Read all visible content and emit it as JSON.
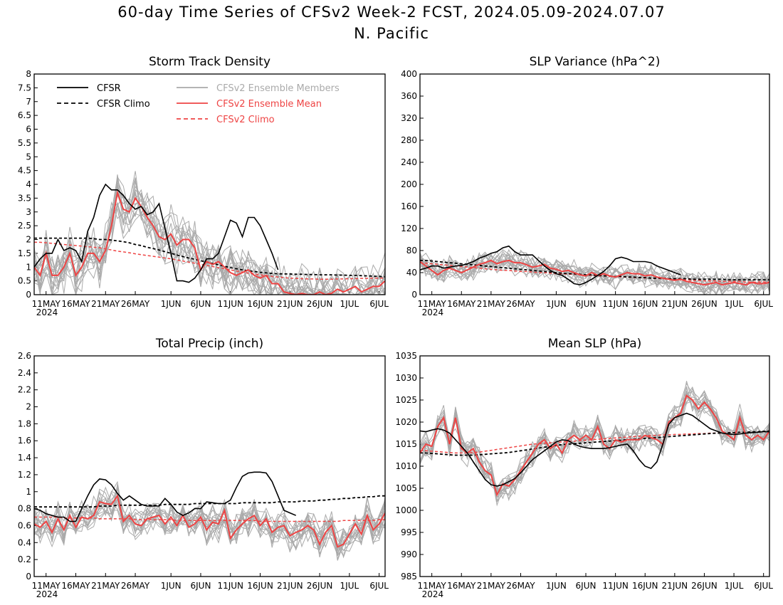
{
  "header": {
    "title": "60-day Time Series of CFSv2 Week-2 FCST, 2024.05.09-2024.07.07",
    "subtitle": "N. Pacific"
  },
  "colors": {
    "cfsr": "#000000",
    "cfsr_climo": "#000000",
    "members": "#aaaaaa",
    "ens_mean": "#ee4444",
    "cfsv2_climo": "#ee4444"
  },
  "legend": {
    "cfsr": "CFSR",
    "cfsr_climo": "CFSR Climo",
    "members": "CFSv2 Ensemble Members",
    "ens_mean": "CFSv2 Ensemble Mean",
    "cfsv2_climo": "CFSv2 Climo"
  },
  "chart_data": [
    {
      "type": "line",
      "title": "Storm Track Density",
      "xlim": [
        0,
        59
      ],
      "ylim": [
        0,
        8
      ],
      "yticks": [
        "0",
        "0.5",
        "1",
        "1.5",
        "2",
        "2.5",
        "3",
        "3.5",
        "4",
        "4.5",
        "5",
        "5.5",
        "6",
        "6.5",
        "7",
        "7.5",
        "8"
      ],
      "x_ticks": [
        {
          "day": 2,
          "label": "11MAY",
          "sub": "2024"
        },
        {
          "day": 7,
          "label": "16MAY"
        },
        {
          "day": 12,
          "label": "21MAY"
        },
        {
          "day": 17,
          "label": "26MAY"
        },
        {
          "day": 23,
          "label": "1JUN"
        },
        {
          "day": 28,
          "label": "6JUN"
        },
        {
          "day": 33,
          "label": "11JUN"
        },
        {
          "day": 38,
          "label": "16JUN"
        },
        {
          "day": 43,
          "label": "21JUN"
        },
        {
          "day": 48,
          "label": "26JUN"
        },
        {
          "day": 53,
          "label": "1JUL"
        },
        {
          "day": 58,
          "label": "6JUL"
        }
      ],
      "cfsr": [
        1.0,
        1.3,
        1.5,
        1.5,
        2.0,
        1.6,
        1.7,
        1.6,
        1.2,
        2.3,
        2.8,
        3.6,
        4.0,
        3.8,
        3.8,
        3.6,
        3.3,
        3.1,
        3.2,
        2.9,
        3.0,
        3.3,
        2.4,
        1.5,
        0.5,
        0.5,
        0.45,
        0.6,
        0.9,
        1.3,
        1.3,
        1.5,
        2.1,
        2.7,
        2.6,
        2.1,
        2.8,
        2.8,
        2.5,
        2.0,
        1.5,
        0.9
      ],
      "cfsr_climo": [
        2.05,
        2.05,
        2.05,
        2.05,
        2.05,
        2.05,
        2.05,
        2.05,
        2.05,
        2.05,
        2.03,
        2.0,
        2.0,
        1.98,
        1.95,
        1.92,
        1.88,
        1.82,
        1.78,
        1.72,
        1.67,
        1.62,
        1.56,
        1.5,
        1.44,
        1.38,
        1.33,
        1.28,
        1.23,
        1.18,
        1.13,
        1.08,
        1.03,
        0.98,
        0.94,
        0.9,
        0.87,
        0.84,
        0.81,
        0.79,
        0.77,
        0.76,
        0.75,
        0.75,
        0.74,
        0.74,
        0.73,
        0.73,
        0.72,
        0.72,
        0.72,
        0.71,
        0.71,
        0.7,
        0.7,
        0.69,
        0.68,
        0.67,
        0.66,
        0.65
      ],
      "ens_mean": [
        1.0,
        0.7,
        1.5,
        0.7,
        0.7,
        1.0,
        1.5,
        0.7,
        1.0,
        1.5,
        1.5,
        1.2,
        1.6,
        2.5,
        3.7,
        3.1,
        3.0,
        3.5,
        3.2,
        2.8,
        2.5,
        2.1,
        2.0,
        2.2,
        1.8,
        2.0,
        2.0,
        1.7,
        0.9,
        1.2,
        1.1,
        1.2,
        1.0,
        0.8,
        0.7,
        0.8,
        0.9,
        0.7,
        0.6,
        0.7,
        0.4,
        0.4,
        0.1,
        0.05,
        0.0,
        0.05,
        0.0,
        0.0,
        0.1,
        0.0,
        0.05,
        0.2,
        0.1,
        0.2,
        0.3,
        0.1,
        0.2,
        0.3,
        0.3,
        0.5
      ],
      "cfsv2_climo": [
        1.9,
        1.9,
        1.88,
        1.86,
        1.84,
        1.82,
        1.8,
        1.78,
        1.76,
        1.74,
        1.72,
        1.7,
        1.66,
        1.62,
        1.58,
        1.55,
        1.52,
        1.48,
        1.45,
        1.42,
        1.39,
        1.36,
        1.33,
        1.3,
        1.26,
        1.22,
        1.18,
        1.14,
        1.1,
        1.06,
        1.02,
        0.98,
        0.94,
        0.9,
        0.86,
        0.82,
        0.78,
        0.75,
        0.72,
        0.69,
        0.66,
        0.64,
        0.62,
        0.6,
        0.59,
        0.58,
        0.57,
        0.57,
        0.56,
        0.56,
        0.56,
        0.57,
        0.57,
        0.58,
        0.58,
        0.59,
        0.59,
        0.6,
        0.6,
        0.6
      ],
      "member_spread": 0.8,
      "member_count": 16
    },
    {
      "type": "line",
      "title": "SLP Variance (hPa^2)",
      "xlim": [
        0,
        59
      ],
      "ylim": [
        0,
        400
      ],
      "yticks": [
        "0",
        "40",
        "80",
        "120",
        "160",
        "200",
        "240",
        "280",
        "320",
        "360",
        "400"
      ],
      "x_ticks": [
        {
          "day": 2,
          "label": "11MAY",
          "sub": "2024"
        },
        {
          "day": 7,
          "label": "16MAY"
        },
        {
          "day": 12,
          "label": "21MAY"
        },
        {
          "day": 17,
          "label": "26MAY"
        },
        {
          "day": 23,
          "label": "1JUN"
        },
        {
          "day": 28,
          "label": "6JUN"
        },
        {
          "day": 33,
          "label": "11JUN"
        },
        {
          "day": 38,
          "label": "16JUN"
        },
        {
          "day": 43,
          "label": "21JUN"
        },
        {
          "day": 48,
          "label": "26JUN"
        },
        {
          "day": 53,
          "label": "1JUL"
        },
        {
          "day": 58,
          "label": "6JUL"
        }
      ],
      "cfsr": [
        45,
        48,
        52,
        52,
        48,
        50,
        52,
        53,
        56,
        60,
        66,
        70,
        75,
        78,
        85,
        88,
        78,
        72,
        72,
        72,
        62,
        52,
        44,
        38,
        35,
        28,
        20,
        18,
        22,
        28,
        35,
        42,
        52,
        65,
        68,
        65,
        60,
        60,
        60,
        58,
        52,
        48,
        44,
        40,
        36
      ],
      "cfsr_climo": [
        62,
        62,
        61,
        60,
        59,
        58,
        57,
        56,
        55,
        54,
        53,
        52,
        51,
        50,
        49,
        48,
        47,
        46,
        45,
        44,
        43,
        42,
        41,
        40,
        39,
        38,
        38,
        37,
        36,
        36,
        35,
        34,
        34,
        33,
        33,
        32,
        32,
        31,
        31,
        30,
        30,
        30,
        29,
        29,
        29,
        29,
        28,
        28,
        28,
        28,
        28,
        28,
        27,
        27,
        27,
        27,
        27,
        27,
        27,
        27
      ],
      "ens_mean": [
        60,
        52,
        44,
        36,
        44,
        48,
        44,
        40,
        45,
        50,
        55,
        58,
        62,
        56,
        60,
        62,
        58,
        58,
        54,
        50,
        52,
        55,
        48,
        46,
        42,
        44,
        40,
        36,
        34,
        40,
        35,
        38,
        34,
        32,
        36,
        40,
        38,
        38,
        34,
        36,
        32,
        30,
        28,
        26,
        28,
        24,
        22,
        20,
        18,
        20,
        22,
        18,
        20,
        22,
        20,
        18,
        22,
        20,
        20,
        22
      ],
      "cfsv2_climo": [
        58,
        57,
        56,
        55,
        54,
        53,
        52,
        51,
        50,
        49,
        48,
        47,
        46,
        45,
        44,
        44,
        43,
        42,
        42,
        41,
        40,
        40,
        39,
        38,
        38,
        37,
        37,
        36,
        35,
        35,
        34,
        34,
        33,
        33,
        32,
        32,
        31,
        31,
        30,
        30,
        29,
        29,
        28,
        28,
        27,
        27,
        26,
        26,
        25,
        25,
        25,
        24,
        24,
        24,
        24,
        23,
        23,
        23,
        23,
        23
      ],
      "member_spread": 18,
      "member_count": 16
    },
    {
      "type": "line",
      "title": "Total Precip (inch)",
      "xlim": [
        0,
        59
      ],
      "ylim": [
        0,
        2.6
      ],
      "yticks": [
        "0",
        "0.2",
        "0.4",
        "0.6",
        "0.8",
        "1",
        "1.2",
        "1.4",
        "1.6",
        "1.8",
        "2",
        "2.2",
        "2.4",
        "2.6"
      ],
      "x_ticks": [
        {
          "day": 2,
          "label": "11MAY",
          "sub": "2024"
        },
        {
          "day": 7,
          "label": "16MAY"
        },
        {
          "day": 12,
          "label": "21MAY"
        },
        {
          "day": 17,
          "label": "26MAY"
        },
        {
          "day": 23,
          "label": "1JUN"
        },
        {
          "day": 28,
          "label": "6JUN"
        },
        {
          "day": 33,
          "label": "11JUN"
        },
        {
          "day": 38,
          "label": "16JUN"
        },
        {
          "day": 43,
          "label": "21JUN"
        },
        {
          "day": 48,
          "label": "26JUN"
        },
        {
          "day": 53,
          "label": "1JUL"
        },
        {
          "day": 58,
          "label": "6JUL"
        }
      ],
      "cfsr": [
        0.8,
        0.78,
        0.74,
        0.72,
        0.7,
        0.7,
        0.65,
        0.65,
        0.8,
        0.95,
        1.08,
        1.15,
        1.14,
        1.08,
        0.98,
        0.9,
        0.95,
        0.9,
        0.85,
        0.83,
        0.83,
        0.83,
        0.92,
        0.85,
        0.76,
        0.72,
        0.75,
        0.8,
        0.8,
        0.88,
        0.87,
        0.86,
        0.86,
        0.9,
        1.05,
        1.18,
        1.22,
        1.23,
        1.23,
        1.22,
        1.12,
        0.95,
        0.78,
        0.75,
        0.72
      ],
      "cfsr_climo": [
        0.82,
        0.82,
        0.82,
        0.82,
        0.82,
        0.82,
        0.82,
        0.82,
        0.82,
        0.82,
        0.82,
        0.83,
        0.83,
        0.83,
        0.84,
        0.84,
        0.84,
        0.84,
        0.84,
        0.84,
        0.84,
        0.84,
        0.85,
        0.85,
        0.85,
        0.85,
        0.85,
        0.86,
        0.86,
        0.86,
        0.86,
        0.86,
        0.86,
        0.86,
        0.86,
        0.87,
        0.87,
        0.87,
        0.87,
        0.87,
        0.87,
        0.88,
        0.88,
        0.88,
        0.88,
        0.89,
        0.89,
        0.89,
        0.9,
        0.9,
        0.91,
        0.91,
        0.92,
        0.92,
        0.93,
        0.93,
        0.94,
        0.94,
        0.95,
        0.95
      ],
      "ens_mean": [
        0.62,
        0.58,
        0.65,
        0.52,
        0.68,
        0.55,
        0.72,
        0.58,
        0.7,
        0.68,
        0.72,
        0.88,
        0.86,
        0.85,
        0.95,
        0.65,
        0.72,
        0.62,
        0.6,
        0.68,
        0.7,
        0.72,
        0.62,
        0.7,
        0.6,
        0.72,
        0.58,
        0.62,
        0.7,
        0.55,
        0.64,
        0.62,
        0.78,
        0.45,
        0.55,
        0.62,
        0.68,
        0.72,
        0.6,
        0.68,
        0.52,
        0.58,
        0.6,
        0.48,
        0.52,
        0.55,
        0.6,
        0.55,
        0.38,
        0.52,
        0.6,
        0.35,
        0.38,
        0.5,
        0.62,
        0.5,
        0.72,
        0.55,
        0.62,
        0.75
      ],
      "cfsv2_climo": [
        0.7,
        0.7,
        0.7,
        0.7,
        0.7,
        0.69,
        0.69,
        0.69,
        0.69,
        0.69,
        0.69,
        0.68,
        0.68,
        0.68,
        0.68,
        0.68,
        0.68,
        0.67,
        0.67,
        0.67,
        0.67,
        0.67,
        0.67,
        0.67,
        0.66,
        0.66,
        0.66,
        0.66,
        0.66,
        0.66,
        0.66,
        0.66,
        0.66,
        0.66,
        0.66,
        0.66,
        0.66,
        0.66,
        0.65,
        0.65,
        0.65,
        0.65,
        0.65,
        0.65,
        0.65,
        0.65,
        0.65,
        0.65,
        0.65,
        0.65,
        0.65,
        0.65,
        0.66,
        0.66,
        0.66,
        0.66,
        0.66,
        0.66,
        0.67,
        0.67
      ],
      "member_spread": 0.17,
      "member_count": 16
    },
    {
      "type": "line",
      "title": "Mean SLP (hPa)",
      "xlim": [
        0,
        59
      ],
      "ylim": [
        985,
        1035
      ],
      "yticks": [
        "985",
        "990",
        "995",
        "1000",
        "1005",
        "1010",
        "1015",
        "1020",
        "1025",
        "1030",
        "1035"
      ],
      "x_ticks": [
        {
          "day": 2,
          "label": "11MAY",
          "sub": "2024"
        },
        {
          "day": 7,
          "label": "16MAY"
        },
        {
          "day": 12,
          "label": "21MAY"
        },
        {
          "day": 17,
          "label": "26MAY"
        },
        {
          "day": 23,
          "label": "1JUN"
        },
        {
          "day": 28,
          "label": "6JUN"
        },
        {
          "day": 33,
          "label": "11JUN"
        },
        {
          "day": 38,
          "label": "16JUN"
        },
        {
          "day": 43,
          "label": "21JUN"
        },
        {
          "day": 48,
          "label": "26JUN"
        },
        {
          "day": 53,
          "label": "1JUL"
        },
        {
          "day": 58,
          "label": "6JUL"
        }
      ],
      "cfsr": [
        1018,
        1017.8,
        1018.2,
        1018.5,
        1018.2,
        1017.5,
        1016,
        1014.5,
        1013,
        1011,
        1009,
        1007,
        1005.8,
        1005.5,
        1005.8,
        1006.5,
        1007.2,
        1008.5,
        1010,
        1011.5,
        1012.5,
        1013.5,
        1014.5,
        1015.5,
        1016,
        1015.8,
        1015,
        1014.5,
        1014.2,
        1014,
        1014,
        1014,
        1014.2,
        1014.5,
        1014.8,
        1015,
        1013.5,
        1011.5,
        1010,
        1009.5,
        1011,
        1015,
        1019.5,
        1021,
        1021.5,
        1022,
        1021.5,
        1020.5,
        1019.5,
        1018.5,
        1018,
        1017.5,
        1017.3,
        1017.2,
        1017.3,
        1017.5,
        1017.6,
        1017.7,
        1017.8,
        1017.8
      ],
      "cfsr_climo": [
        1013,
        1013,
        1012.9,
        1012.8,
        1012.7,
        1012.6,
        1012.5,
        1012.5,
        1012.5,
        1012.5,
        1012.6,
        1012.7,
        1012.8,
        1012.9,
        1013,
        1013.1,
        1013.3,
        1013.5,
        1013.7,
        1013.9,
        1014.1,
        1014.3,
        1014.5,
        1014.7,
        1014.9,
        1015,
        1015.1,
        1015.2,
        1015.3,
        1015.4,
        1015.5,
        1015.6,
        1015.7,
        1015.8,
        1015.9,
        1016,
        1016.1,
        1016.2,
        1016.3,
        1016.4,
        1016.5,
        1016.6,
        1016.7,
        1016.8,
        1016.9,
        1017,
        1017.1,
        1017.2,
        1017.3,
        1017.4,
        1017.5,
        1017.5,
        1017.6,
        1017.6,
        1017.7,
        1017.7,
        1017.8,
        1017.8,
        1017.9,
        1018
      ],
      "ens_mean": [
        1013,
        1015,
        1014.5,
        1019,
        1021,
        1015,
        1021,
        1014,
        1013,
        1014,
        1011,
        1009,
        1008,
        1003.5,
        1006,
        1005.5,
        1007,
        1009,
        1011,
        1013,
        1015,
        1016,
        1014,
        1015,
        1013,
        1016,
        1017,
        1016,
        1017,
        1016,
        1019,
        1015,
        1014,
        1016,
        1015.5,
        1016,
        1016,
        1016,
        1017,
        1016.5,
        1016,
        1015,
        1020,
        1021,
        1022,
        1026,
        1025,
        1023,
        1024.5,
        1023,
        1021,
        1018,
        1017,
        1016,
        1021,
        1017,
        1016,
        1017,
        1016,
        1018
      ],
      "cfsv2_climo": [
        1013.5,
        1013.5,
        1013.4,
        1013.3,
        1013.2,
        1013.1,
        1013,
        1013,
        1013,
        1013.1,
        1013.2,
        1013.4,
        1013.6,
        1013.8,
        1014,
        1014.2,
        1014.4,
        1014.6,
        1014.8,
        1015,
        1015.1,
        1015.2,
        1015.3,
        1015.4,
        1015.5,
        1015.6,
        1015.7,
        1015.8,
        1015.9,
        1016,
        1016.1,
        1016.2,
        1016.3,
        1016.4,
        1016.5,
        1016.6,
        1016.7,
        1016.8,
        1016.9,
        1017,
        1017,
        1017.1,
        1017.1,
        1017.2,
        1017.2,
        1017.3,
        1017.3,
        1017.4,
        1017.4,
        1017.5,
        1017.5,
        1017.6,
        1017.6,
        1017.6,
        1017.7,
        1017.7,
        1017.7,
        1017.7,
        1017.8,
        1017.8
      ],
      "member_spread": 2.5,
      "member_count": 16
    }
  ]
}
